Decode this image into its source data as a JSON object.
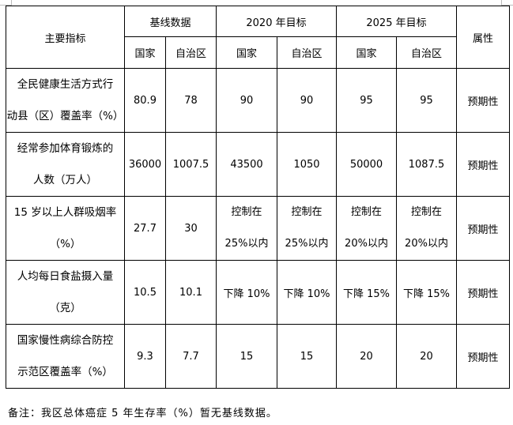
{
  "header": {
    "indicator": "主要指标",
    "groups": [
      "基线数据",
      "2020 年目标",
      "2025 年目标"
    ],
    "sub": [
      "国家",
      "自治区"
    ],
    "attribute": "属性"
  },
  "rows": [
    {
      "indicator": [
        "全民健康生活方式行",
        "动县（区）覆盖率（%）"
      ],
      "values": [
        "80.9",
        "78",
        "90",
        "90",
        "95",
        "95"
      ],
      "attribute": "预期性"
    },
    {
      "indicator": [
        "经常参加体育锻炼的",
        "人数（万人）"
      ],
      "values": [
        "36000",
        "1007.5",
        "43500",
        "1050",
        "50000",
        "1087.5"
      ],
      "attribute": "预期性"
    },
    {
      "indicator": [
        "15 岁以上人群吸烟率",
        "（%）"
      ],
      "values": [
        "27.7",
        "30",
        "控制在\n25%以内",
        "控制在\n25%以内",
        "控制在\n20%以内",
        "控制在\n20%以内"
      ],
      "attribute": "预期性"
    },
    {
      "indicator": [
        "人均每日食盐摄入量",
        "（克）"
      ],
      "values": [
        "10.5",
        "10.1",
        "下降 10%",
        "下降 10%",
        "下降 15%",
        "下降 15%"
      ],
      "attribute": "预期性"
    },
    {
      "indicator": [
        "国家慢性病综合防控",
        "示范区覆盖率（%）"
      ],
      "values": [
        "9.3",
        "7.7",
        "15",
        "15",
        "20",
        "20"
      ],
      "attribute": "预期性"
    }
  ],
  "note": "备注：我区总体癌症 5 年生存率（%）暂无基线数据。"
}
